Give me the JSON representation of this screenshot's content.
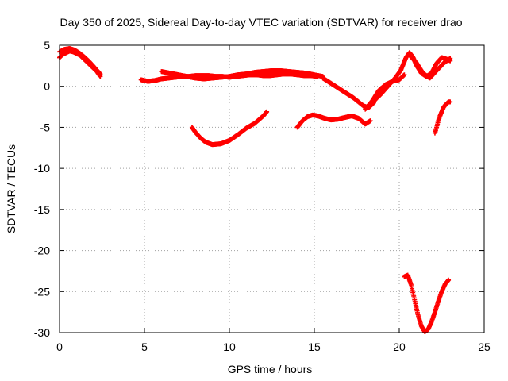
{
  "chart_data": {
    "type": "scatter",
    "title": "Day 350 of 2025, Sidereal Day-to-day VTEC variation (SDTVAR) for receiver drao",
    "xlabel": "GPS time / hours",
    "ylabel": "SDTVAR / TECUs",
    "xlim": [
      0,
      25
    ],
    "ylim": [
      -30,
      5
    ],
    "xticks": [
      0,
      5,
      10,
      15,
      20,
      25
    ],
    "yticks": [
      5,
      0,
      -5,
      -10,
      -15,
      -20,
      -25,
      -30
    ],
    "grid": true,
    "marker": "plus",
    "color": "#ff0000",
    "series": [
      {
        "x": [
          0.0,
          0.2,
          0.4,
          0.6,
          0.8,
          1.0,
          1.2,
          1.4,
          1.6,
          1.8,
          2.0,
          2.2,
          2.4
        ],
        "y": [
          3.5,
          3.9,
          4.1,
          4.3,
          4.2,
          4.0,
          3.8,
          3.4,
          3.0,
          2.6,
          2.2,
          1.8,
          1.2
        ]
      },
      {
        "x": [
          0.0,
          0.3,
          0.6,
          0.9,
          1.2,
          1.5,
          1.8,
          2.1,
          2.4
        ],
        "y": [
          4.2,
          4.5,
          4.6,
          4.4,
          4.0,
          3.5,
          2.9,
          2.2,
          1.5
        ]
      },
      {
        "x": [
          4.8,
          5.2,
          5.6,
          6.0,
          6.4,
          6.8,
          7.2,
          7.6,
          8.0,
          8.4,
          8.8,
          9.2,
          9.6,
          10.0,
          10.4,
          10.8,
          11.2,
          11.6,
          12.0,
          12.4,
          12.8,
          13.2,
          13.6,
          14.0,
          14.4,
          14.8,
          15.2
        ],
        "y": [
          0.8,
          0.6,
          0.7,
          0.9,
          1.0,
          1.1,
          1.2,
          1.2,
          1.3,
          1.3,
          1.3,
          1.2,
          1.2,
          1.1,
          1.2,
          1.3,
          1.4,
          1.4,
          1.3,
          1.3,
          1.4,
          1.5,
          1.5,
          1.4,
          1.3,
          1.3,
          1.2
        ]
      },
      {
        "x": [
          6.0,
          6.5,
          7.0,
          7.5,
          8.0,
          8.5,
          9.0,
          9.5,
          10.0,
          10.5,
          11.0,
          11.5,
          12.0,
          12.5,
          13.0,
          13.5,
          14.0,
          14.5,
          15.0,
          15.5
        ],
        "y": [
          1.8,
          1.6,
          1.4,
          1.2,
          1.0,
          0.9,
          1.0,
          1.1,
          1.2,
          1.4,
          1.5,
          1.7,
          1.8,
          1.9,
          1.9,
          1.8,
          1.7,
          1.6,
          1.4,
          1.2
        ]
      },
      {
        "x": [
          15.5,
          15.8,
          16.1,
          16.4,
          16.7,
          17.0,
          17.3,
          17.6,
          17.9,
          18.2,
          18.5
        ],
        "y": [
          1.0,
          0.6,
          0.2,
          -0.2,
          -0.6,
          -1.0,
          -1.4,
          -1.9,
          -2.4,
          -2.6,
          -2.0
        ]
      },
      {
        "x": [
          7.8,
          8.0,
          8.3,
          8.6,
          9.0,
          9.5,
          10.0,
          10.5,
          11.0,
          11.5,
          12.0,
          12.2
        ],
        "y": [
          -5.0,
          -5.6,
          -6.3,
          -6.8,
          -7.1,
          -7.0,
          -6.6,
          -5.9,
          -5.1,
          -4.5,
          -3.6,
          -3.1
        ]
      },
      {
        "x": [
          14.0,
          14.3,
          14.6,
          14.9,
          15.2,
          15.6,
          16.0,
          16.4,
          16.8,
          17.2,
          17.6,
          18.0,
          18.3
        ],
        "y": [
          -5.0,
          -4.2,
          -3.7,
          -3.5,
          -3.6,
          -3.9,
          -4.1,
          -4.0,
          -3.8,
          -3.6,
          -3.9,
          -4.6,
          -4.2
        ]
      },
      {
        "x": [
          18.3,
          18.6,
          18.9,
          19.2,
          19.5,
          19.8,
          20.1,
          20.4,
          20.6,
          20.8,
          21.0,
          21.3,
          21.6,
          21.9,
          22.2,
          22.5,
          22.8,
          23.0
        ],
        "y": [
          -2.3,
          -1.6,
          -1.0,
          -0.3,
          0.4,
          1.1,
          2.0,
          3.5,
          4.1,
          3.6,
          2.6,
          1.6,
          1.2,
          1.6,
          2.8,
          3.5,
          3.3,
          3.1
        ]
      },
      {
        "x": [
          18.0,
          18.4,
          18.8,
          19.2,
          19.6,
          20.0,
          20.3
        ],
        "y": [
          -2.8,
          -1.8,
          -0.5,
          0.2,
          0.6,
          0.8,
          1.4
        ]
      },
      {
        "x": [
          20.6,
          21.0,
          21.4,
          21.8,
          22.2,
          22.6,
          23.0
        ],
        "y": [
          3.8,
          2.9,
          1.6,
          1.0,
          1.9,
          2.8,
          3.4
        ]
      },
      {
        "x": [
          22.1,
          22.2,
          22.3,
          22.4,
          22.5,
          22.6,
          22.7,
          22.8,
          22.9,
          23.0
        ],
        "y": [
          -5.7,
          -5.0,
          -4.2,
          -3.6,
          -3.1,
          -2.6,
          -2.3,
          -2.1,
          -1.9,
          -1.9
        ]
      },
      {
        "x": [
          20.3,
          20.5,
          20.7,
          20.9,
          21.1,
          21.3,
          21.5,
          21.7,
          21.9,
          22.1,
          22.3,
          22.5,
          22.7,
          22.9
        ],
        "y": [
          -23.2,
          -23.0,
          -24.2,
          -26.0,
          -27.8,
          -29.2,
          -29.9,
          -29.6,
          -28.7,
          -27.5,
          -26.2,
          -25.0,
          -24.1,
          -23.6
        ]
      }
    ]
  }
}
